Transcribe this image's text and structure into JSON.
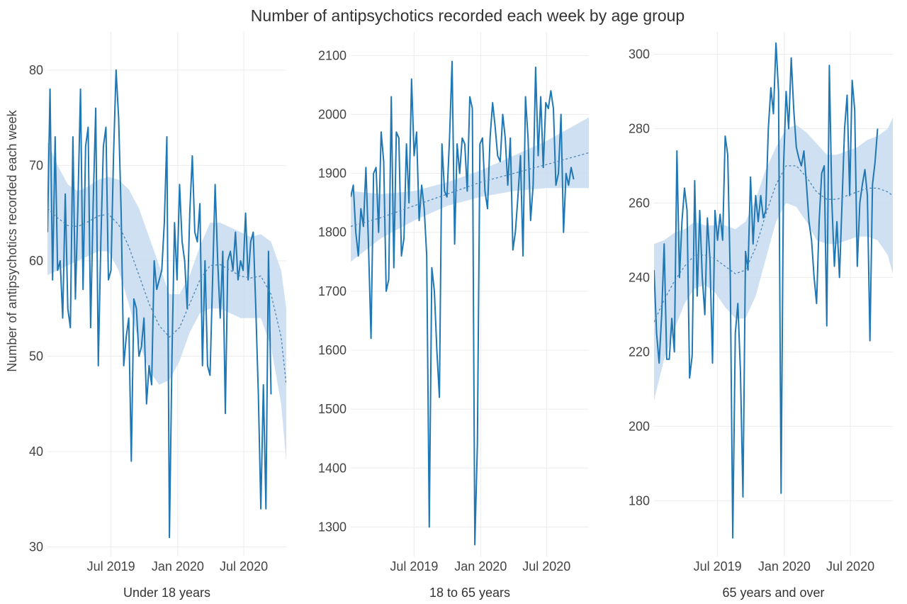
{
  "colors": {
    "line": "#1f77b4",
    "ribbon": "#c6dbef",
    "trend": "#4a86b8",
    "grid": "#ececec",
    "text": "#444444"
  },
  "chart_data": [
    {
      "type": "line",
      "title": "Number of antipsychotics recorded each week by age group",
      "xlabel": "Under 18 years",
      "ylabel": "Number of antipsychotics recorded each week",
      "x_range": [
        "2019-01-07",
        "2020-10-26"
      ],
      "x_ticks": [
        {
          "date": "2019-07-01",
          "label": "Jul 2019"
        },
        {
          "date": "2020-01-01",
          "label": "Jan 2020"
        },
        {
          "date": "2020-07-01",
          "label": "Jul 2020"
        }
      ],
      "ylim": [
        29,
        84
      ],
      "y_ticks": [
        30,
        40,
        50,
        60,
        70,
        80
      ],
      "grid": true,
      "series": [
        {
          "kind": "weekly_count",
          "start_date": "2019-01-07",
          "interval_days": 7,
          "values": [
            63,
            78,
            58,
            73,
            59,
            60,
            54,
            67,
            55,
            53,
            73,
            56,
            66,
            78,
            57,
            72,
            74,
            53,
            66,
            76,
            49,
            62,
            72,
            74,
            58,
            59,
            71,
            80,
            75,
            65,
            49,
            52,
            54,
            39,
            56,
            55,
            50,
            51,
            54,
            45,
            49,
            47,
            60,
            57,
            58,
            59,
            64,
            73,
            31,
            50,
            64,
            58,
            68,
            62,
            60,
            55,
            65,
            71,
            63,
            62,
            66,
            49,
            60,
            49,
            48,
            58,
            68,
            60,
            54,
            61,
            44,
            60,
            61,
            59,
            63,
            58,
            60,
            59,
            65,
            58,
            62,
            63,
            55,
            46,
            34,
            47,
            34,
            61,
            46
          ]
        },
        {
          "kind": "smoothed_trend",
          "dates": [
            "2019-01-07",
            "2019-02-04",
            "2019-03-04",
            "2019-04-01",
            "2019-04-29",
            "2019-05-27",
            "2019-06-24",
            "2019-07-22",
            "2019-08-19",
            "2019-09-16",
            "2019-10-14",
            "2019-11-11",
            "2019-12-09",
            "2020-01-06",
            "2020-02-03",
            "2020-03-02",
            "2020-03-30",
            "2020-04-27",
            "2020-05-25",
            "2020-06-22",
            "2020-07-20",
            "2020-08-17",
            "2020-09-14",
            "2020-10-12",
            "2020-10-26"
          ],
          "values": [
            65.5,
            64.5,
            63.7,
            63.6,
            64.1,
            64.7,
            64.9,
            63.8,
            61.5,
            58.5,
            55.5,
            53.2,
            52.0,
            53.0,
            55.5,
            58.0,
            59.5,
            59.6,
            59.0,
            58.4,
            58.2,
            58.4,
            56.5,
            52.0,
            47.0
          ],
          "ci_lower": [
            58.5,
            59.0,
            59.5,
            60.0,
            60.5,
            61.0,
            61.0,
            59.0,
            55.5,
            51.5,
            48.5,
            47.0,
            47.5,
            49.5,
            52.5,
            54.5,
            55.0,
            55.0,
            54.5,
            54.0,
            54.0,
            54.0,
            51.0,
            45.0,
            39.0
          ],
          "ci_upper": [
            72.5,
            70.0,
            68.0,
            67.3,
            67.8,
            68.5,
            68.8,
            68.5,
            67.5,
            65.5,
            62.5,
            59.5,
            56.5,
            56.5,
            58.5,
            61.5,
            64.0,
            64.0,
            63.5,
            63.0,
            62.5,
            62.8,
            62.0,
            59.0,
            55.0
          ]
        }
      ]
    },
    {
      "type": "line",
      "xlabel": "18 to 65 years",
      "ylabel": "",
      "x_range": [
        "2019-01-07",
        "2020-10-26"
      ],
      "x_ticks": [
        {
          "date": "2019-07-01",
          "label": "Jul 2019"
        },
        {
          "date": "2020-01-01",
          "label": "Jan 2020"
        },
        {
          "date": "2020-07-01",
          "label": "Jul 2020"
        }
      ],
      "ylim": [
        1250,
        2140
      ],
      "y_ticks": [
        1300,
        1400,
        1500,
        1600,
        1700,
        1800,
        1900,
        2000,
        2100
      ],
      "grid": true,
      "series": [
        {
          "kind": "weekly_count",
          "start_date": "2019-01-07",
          "interval_days": 7,
          "values": [
            1860,
            1880,
            1800,
            1760,
            1840,
            1810,
            1910,
            1780,
            1620,
            1900,
            1910,
            1800,
            1970,
            1920,
            1700,
            1720,
            2030,
            1740,
            1970,
            1960,
            1760,
            1790,
            1950,
            1850,
            2060,
            1930,
            1970,
            1820,
            1880,
            1840,
            1760,
            1300,
            1740,
            1700,
            1600,
            1520,
            1950,
            1870,
            1860,
            1960,
            2090,
            1780,
            1950,
            1900,
            1960,
            1950,
            1870,
            2030,
            2010,
            1270,
            1440,
            1950,
            1960,
            1870,
            1840,
            1960,
            2020,
            1980,
            1930,
            1920,
            2000,
            1960,
            1880,
            1960,
            1770,
            1800,
            1860,
            1930,
            1760,
            2030,
            1960,
            1820,
            1880,
            2080,
            1930,
            2030,
            1910,
            2020,
            2010,
            2040,
            2010,
            1880,
            1900,
            2000,
            1800,
            1900,
            1880,
            1910,
            1890
          ],
          "ribbon_clip_note": ""
        },
        {
          "kind": "smoothed_trend",
          "dates": [
            "2019-01-07",
            "2019-04-01",
            "2019-07-01",
            "2019-10-01",
            "2020-01-01",
            "2020-04-01",
            "2020-07-01",
            "2020-10-26"
          ],
          "values": [
            1810,
            1825,
            1845,
            1865,
            1885,
            1900,
            1915,
            1935
          ],
          "ci_lower": [
            1750,
            1790,
            1820,
            1845,
            1860,
            1870,
            1875,
            1875
          ],
          "ci_upper": [
            1870,
            1865,
            1870,
            1885,
            1905,
            1930,
            1955,
            1995
          ]
        }
      ]
    },
    {
      "type": "line",
      "xlabel": "65 years and over",
      "ylabel": "",
      "x_range": [
        "2019-01-07",
        "2020-10-26"
      ],
      "x_ticks": [
        {
          "date": "2019-07-01",
          "label": "Jul 2019"
        },
        {
          "date": "2020-01-01",
          "label": "Jan 2020"
        },
        {
          "date": "2020-07-01",
          "label": "Jul 2020"
        }
      ],
      "ylim": [
        165,
        306
      ],
      "y_ticks": [
        180,
        200,
        220,
        240,
        260,
        280,
        300
      ],
      "grid": true,
      "series": [
        {
          "kind": "weekly_count",
          "start_date": "2019-01-07",
          "interval_days": 7,
          "values": [
            242,
            225,
            217,
            230,
            249,
            218,
            218,
            229,
            220,
            274,
            240,
            255,
            264,
            258,
            213,
            219,
            266,
            235,
            258,
            240,
            230,
            256,
            245,
            217,
            258,
            250,
            257,
            250,
            278,
            273,
            240,
            170,
            225,
            233,
            215,
            181,
            247,
            242,
            267,
            249,
            262,
            255,
            262,
            256,
            258,
            280,
            291,
            284,
            303,
            290,
            182,
            270,
            290,
            280,
            299,
            285,
            275,
            272,
            270,
            274,
            265,
            255,
            250,
            240,
            233,
            255,
            268,
            270,
            227,
            297,
            260,
            243,
            255,
            240,
            260,
            280,
            289,
            262,
            293,
            285,
            243,
            260,
            265,
            269,
            262,
            223,
            265,
            271,
            280
          ]
        },
        {
          "kind": "smoothed_trend",
          "dates": [
            "2019-01-07",
            "2019-02-04",
            "2019-03-04",
            "2019-04-01",
            "2019-04-29",
            "2019-05-27",
            "2019-06-24",
            "2019-07-22",
            "2019-08-19",
            "2019-09-16",
            "2019-10-14",
            "2019-11-11",
            "2019-12-09",
            "2020-01-06",
            "2020-02-03",
            "2020-03-02",
            "2020-03-30",
            "2020-04-27",
            "2020-05-25",
            "2020-06-22",
            "2020-07-20",
            "2020-08-17",
            "2020-09-14",
            "2020-10-12",
            "2020-10-26"
          ],
          "values": [
            228,
            234,
            239,
            243,
            246,
            246,
            245,
            243,
            241,
            242,
            248,
            257,
            265,
            270,
            270,
            267,
            263,
            261,
            261,
            262,
            263,
            264,
            264,
            263,
            262
          ],
          "ci_lower": [
            207,
            218,
            226,
            233,
            237,
            238,
            236,
            232,
            229,
            229,
            235,
            245,
            255,
            260,
            259,
            255,
            250,
            249,
            249,
            250,
            251,
            251,
            250,
            246,
            241
          ],
          "ci_upper": [
            249,
            250,
            252,
            253,
            255,
            254,
            254,
            254,
            253,
            255,
            261,
            269,
            275,
            280,
            281,
            279,
            276,
            273,
            273,
            274,
            275,
            277,
            278,
            280,
            283
          ]
        }
      ]
    }
  ]
}
